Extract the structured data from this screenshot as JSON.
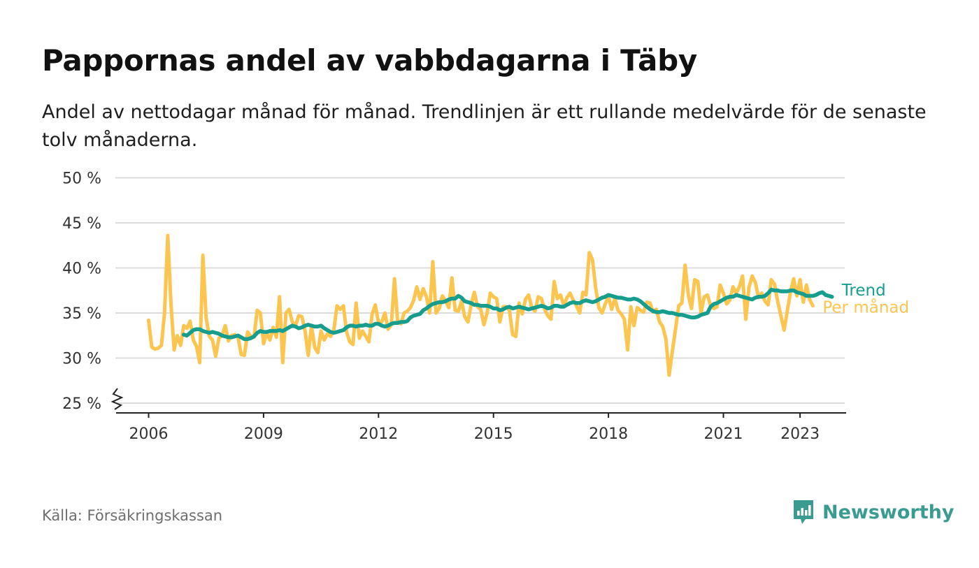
{
  "title": "Pappornas andel av vabbdagarna i Täby",
  "subtitle": "Andel av nettodagar månad för månad. Trendlinjen är ett rullande medelvärde för de senaste tolv månaderna.",
  "source": "Källa: Försäkringskassan",
  "brand": {
    "name": "Newsworthy",
    "icon": "newsworthy-logo-icon",
    "color": "#3a9c91"
  },
  "chart_data": {
    "type": "line",
    "ylim": [
      25,
      50
    ],
    "y_ticks": [
      25,
      30,
      35,
      40,
      45,
      50
    ],
    "y_tick_labels": [
      "25 %",
      "30 %",
      "35 %",
      "40 %",
      "45 %",
      "50 %"
    ],
    "y_axis_break": true,
    "x_ticks": [
      2006,
      2009,
      2012,
      2015,
      2018,
      2021,
      2023
    ],
    "x_tick_labels": [
      "2006",
      "2009",
      "2012",
      "2015",
      "2018",
      "2021",
      "2023"
    ],
    "grid": true,
    "series": [
      {
        "name": "Per månad",
        "color": "#fbc54f",
        "x_start": "2006-01",
        "values": [
          34.2,
          31.2,
          31.0,
          31.1,
          31.4,
          35.0,
          43.6,
          36.0,
          30.9,
          32.5,
          31.4,
          33.6,
          33.3,
          34.1,
          32.0,
          31.3,
          29.5,
          41.4,
          34.5,
          32.4,
          32.0,
          30.2,
          32.2,
          32.5,
          33.6,
          31.9,
          32.5,
          32.6,
          32.3,
          30.4,
          30.3,
          32.9,
          32.4,
          32.3,
          35.3,
          35.0,
          31.6,
          32.8,
          32.0,
          33.4,
          32.3,
          36.8,
          29.5,
          35.0,
          35.4,
          34.0,
          33.6,
          34.7,
          34.6,
          33.0,
          30.3,
          33.6,
          31.2,
          30.6,
          33.0,
          32.0,
          32.7,
          32.4,
          33.1,
          35.8,
          35.4,
          35.8,
          32.9,
          31.8,
          31.5,
          36.1,
          32.2,
          33.0,
          32.4,
          31.8,
          34.9,
          35.9,
          33.9,
          34.0,
          35.0,
          33.2,
          33.7,
          38.8,
          34.0,
          33.8,
          35.0,
          35.2,
          35.6,
          36.4,
          37.9,
          36.5,
          37.7,
          36.8,
          35.0,
          40.7,
          35.0,
          35.5,
          36.9,
          36.3,
          35.6,
          38.9,
          35.3,
          35.2,
          36.3,
          34.6,
          34.0,
          35.9,
          37.3,
          35.7,
          35.4,
          33.7,
          35.0,
          37.2,
          36.8,
          36.6,
          34.0,
          35.7,
          35.7,
          35.3,
          32.6,
          32.4,
          36.1,
          34.9,
          36.5,
          37.0,
          35.6,
          35.2,
          36.8,
          36.6,
          35.4,
          34.7,
          34.3,
          38.5,
          36.6,
          37.0,
          35.8,
          36.7,
          37.2,
          36.4,
          35.8,
          35.0,
          37.3,
          37.0,
          41.7,
          40.9,
          37.8,
          35.6,
          35.0,
          36.0,
          36.8,
          35.4,
          36.6,
          35.3,
          34.9,
          34.3,
          30.9,
          35.7,
          33.6,
          35.6,
          35.3,
          35.1,
          36.2,
          36.1,
          35.1,
          35.4,
          34.0,
          33.5,
          32.1,
          28.1,
          30.7,
          33.2,
          35.8,
          36.1,
          40.3,
          37.0,
          35.5,
          38.7,
          38.5,
          35.0,
          36.8,
          37.0,
          35.8,
          35.5,
          35.7,
          38.1,
          37.2,
          36.0,
          36.4,
          37.9,
          37.2,
          37.9,
          39.1,
          34.3,
          37.8,
          39.1,
          38.4,
          36.7,
          37.2,
          36.3,
          35.9,
          38.7,
          38.2,
          36.3,
          34.7,
          33.1,
          35.2,
          37.3,
          38.8,
          36.9,
          38.7,
          36.2,
          38.1,
          36.5,
          35.8
        ]
      },
      {
        "name": "Trend",
        "color": "#169d8d",
        "x_start": "2006-12",
        "values": [
          32.6,
          32.5,
          32.8,
          33.1,
          33.2,
          33.2,
          33.0,
          32.9,
          32.8,
          32.9,
          32.8,
          32.7,
          32.5,
          32.4,
          32.3,
          32.3,
          32.4,
          32.5,
          32.3,
          32.1,
          32.1,
          32.2,
          32.4,
          32.8,
          33.0,
          32.9,
          32.9,
          33.0,
          33.0,
          33.0,
          33.1,
          33.0,
          33.2,
          33.4,
          33.6,
          33.5,
          33.3,
          33.4,
          33.6,
          33.7,
          33.6,
          33.5,
          33.5,
          33.6,
          33.3,
          33.1,
          32.9,
          32.8,
          32.9,
          33.0,
          33.1,
          33.4,
          33.6,
          33.6,
          33.5,
          33.6,
          33.6,
          33.7,
          33.6,
          33.6,
          33.8,
          33.8,
          33.6,
          33.5,
          33.6,
          33.8,
          33.9,
          33.9,
          34.0,
          34.0,
          34.1,
          34.5,
          34.7,
          34.8,
          34.9,
          35.3,
          35.5,
          35.8,
          36.0,
          36.1,
          36.2,
          36.2,
          36.3,
          36.5,
          36.6,
          36.6,
          36.9,
          36.7,
          36.3,
          36.2,
          36.1,
          35.9,
          35.9,
          35.8,
          35.8,
          35.8,
          35.7,
          35.5,
          35.5,
          35.3,
          35.4,
          35.6,
          35.7,
          35.5,
          35.6,
          35.7,
          35.6,
          35.5,
          35.4,
          35.5,
          35.6,
          35.7,
          35.8,
          35.7,
          35.5,
          35.6,
          35.8,
          35.8,
          35.7,
          35.7,
          35.9,
          36.1,
          36.2,
          36.1,
          36.1,
          36.3,
          36.4,
          36.3,
          36.2,
          36.3,
          36.5,
          36.7,
          36.8,
          37.0,
          36.9,
          36.8,
          36.7,
          36.7,
          36.6,
          36.5,
          36.5,
          36.6,
          36.5,
          36.3,
          36.0,
          35.7,
          35.4,
          35.2,
          35.1,
          35.1,
          35.2,
          35.1,
          35.0,
          35.0,
          34.9,
          34.8,
          34.8,
          34.7,
          34.6,
          34.5,
          34.5,
          34.6,
          34.8,
          34.9,
          35.0,
          35.7,
          36.0,
          36.1,
          36.3,
          36.5,
          36.7,
          36.8,
          36.8,
          37.0,
          36.9,
          36.8,
          36.7,
          36.6,
          36.5,
          36.7,
          36.8,
          36.8,
          36.9,
          37.2,
          37.6,
          37.5,
          37.5,
          37.4,
          37.4,
          37.4,
          37.5,
          37.5,
          37.3,
          37.2,
          37.1,
          36.9,
          36.9,
          36.9,
          37.0,
          37.2,
          37.3,
          37.0,
          36.9,
          36.8
        ]
      }
    ]
  }
}
